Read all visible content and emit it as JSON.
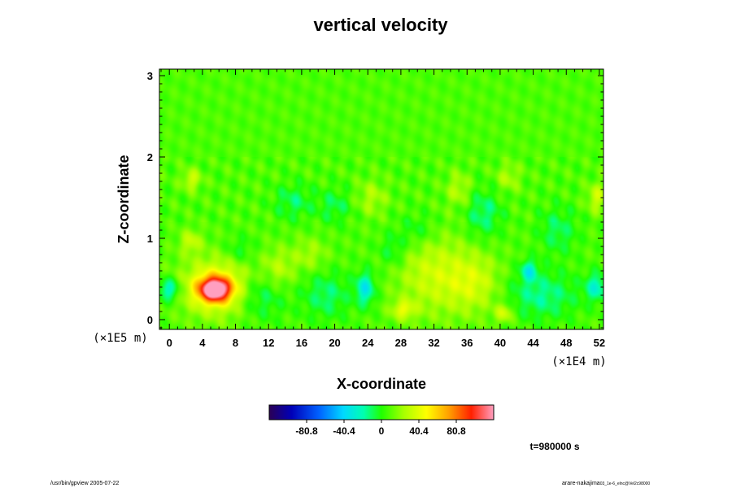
{
  "chart_data": {
    "type": "heatmap",
    "title": "vertical velocity",
    "xlabel": "X-coordinate",
    "ylabel": "Z-coordinate",
    "x_ticks": [
      "0",
      "4",
      "8",
      "12",
      "16",
      "20",
      "24",
      "28",
      "32",
      "36",
      "40",
      "44",
      "48",
      "52"
    ],
    "x_tick_values": [
      0,
      4,
      8,
      12,
      16,
      20,
      24,
      28,
      32,
      36,
      40,
      44,
      48,
      52
    ],
    "x_unit_label": "(×1E4 m)",
    "xlim": [
      -1.2,
      52.5
    ],
    "y_ticks": [
      "0",
      "1",
      "2",
      "3"
    ],
    "y_tick_values": [
      0,
      1,
      2,
      3
    ],
    "y_unit_label": "(×1E5 m)",
    "ylim": [
      -0.12,
      3.08
    ],
    "colorbar": {
      "ticks": [
        "-80.8",
        "-40.4",
        "0",
        "40.4",
        "80.8"
      ],
      "tick_values": [
        -80.8,
        -40.4,
        0,
        40.4,
        80.8
      ],
      "range": [
        -121.2,
        121.2
      ]
    },
    "background_value": 8,
    "features": [
      {
        "x": 5.5,
        "z": 0.37,
        "value": 110,
        "sx": 1.3,
        "sz": 0.1
      },
      {
        "x": 5.8,
        "z": 0.4,
        "value": 45,
        "sx": 3.0,
        "sz": 0.24
      },
      {
        "x": 0.0,
        "z": 0.37,
        "value": -38,
        "sx": 0.9,
        "sz": 0.1
      },
      {
        "x": 51.6,
        "z": 0.4,
        "value": -32,
        "sx": 0.9,
        "sz": 0.12
      },
      {
        "x": 23.7,
        "z": 0.38,
        "value": -40,
        "sx": 0.8,
        "sz": 0.14
      },
      {
        "x": 43.5,
        "z": 0.6,
        "value": -34,
        "sx": 0.7,
        "sz": 0.09
      },
      {
        "x": 32.0,
        "z": 0.55,
        "value": 26,
        "sx": 3.2,
        "sz": 0.35
      },
      {
        "x": 37.0,
        "z": 0.45,
        "value": 24,
        "sx": 2.2,
        "sz": 0.25
      },
      {
        "x": 28.3,
        "z": 0.12,
        "value": 30,
        "sx": 1.0,
        "sz": 0.08
      },
      {
        "x": 40.5,
        "z": 0.08,
        "value": 28,
        "sx": 0.8,
        "sz": 0.08
      },
      {
        "x": 13.2,
        "z": 0.62,
        "value": 20,
        "sx": 1.4,
        "sz": 0.18
      },
      {
        "x": 2.6,
        "z": 0.96,
        "value": 24,
        "sx": 0.9,
        "sz": 0.1
      },
      {
        "x": 2.7,
        "z": 1.72,
        "value": 26,
        "sx": 0.8,
        "sz": 0.09
      },
      {
        "x": 51.7,
        "z": 1.5,
        "value": 26,
        "sx": 0.8,
        "sz": 0.12
      },
      {
        "x": 11.0,
        "z": 0.3,
        "value": -22,
        "sx": 2.0,
        "sz": 0.2
      },
      {
        "x": 19.0,
        "z": 0.3,
        "value": -20,
        "sx": 2.0,
        "sz": 0.2
      },
      {
        "x": 45.0,
        "z": 0.3,
        "value": -24,
        "sx": 3.0,
        "sz": 0.2
      },
      {
        "x": 15.0,
        "z": 1.45,
        "value": -18,
        "sx": 1.6,
        "sz": 0.15
      },
      {
        "x": 20.0,
        "z": 1.4,
        "value": -16,
        "sx": 1.4,
        "sz": 0.15
      },
      {
        "x": 38.0,
        "z": 1.3,
        "value": -22,
        "sx": 1.5,
        "sz": 0.2
      },
      {
        "x": 47.0,
        "z": 1.1,
        "value": -18,
        "sx": 1.6,
        "sz": 0.2
      },
      {
        "x": 30.0,
        "z": 1.1,
        "value": -14,
        "sx": 1.6,
        "sz": 0.15
      },
      {
        "x": 8.5,
        "z": 0.85,
        "value": -14,
        "sx": 1.2,
        "sz": 0.12
      },
      {
        "x": 24.5,
        "z": 1.5,
        "value": 18,
        "sx": 1.3,
        "sz": 0.15
      },
      {
        "x": 41.0,
        "z": 1.75,
        "value": 18,
        "sx": 1.0,
        "sz": 0.12
      },
      {
        "x": 35.0,
        "z": 1.6,
        "value": 20,
        "sx": 1.0,
        "sz": 0.15
      },
      {
        "x": 17.0,
        "z": 0.8,
        "value": 16,
        "sx": 1.5,
        "sz": 0.15
      },
      {
        "x": 27.0,
        "z": 0.85,
        "value": -16,
        "sx": 1.2,
        "sz": 0.15
      }
    ],
    "grid": false
  },
  "labels": {
    "x_unit": "(×1E4 m)",
    "y_unit": "(×1E5 m)",
    "time": "t=980000 s",
    "footer_left": "/usr/bin/gpview 2005-07-22",
    "footer_right_main": "arare-nakajima",
    "footer_right_sub": "03_1e-6_elnc@Vel2c98000"
  }
}
